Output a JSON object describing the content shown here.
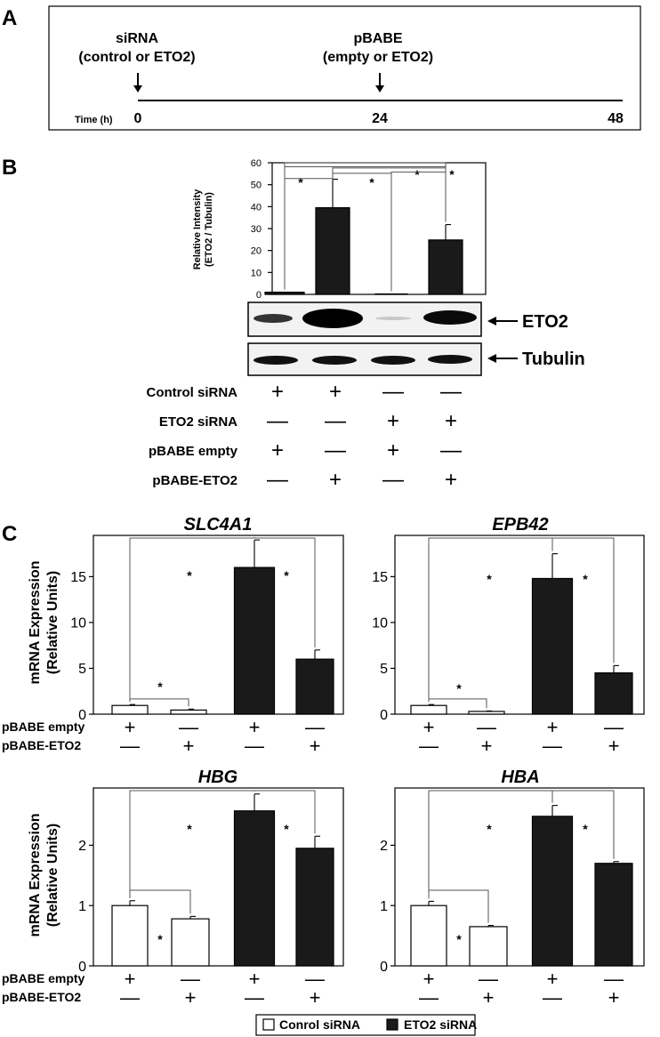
{
  "panel_labels": {
    "a": "A",
    "b": "B",
    "c": "C"
  },
  "timeline": {
    "siRNA_title": "siRNA",
    "siRNA_sub": "(control or ETO2)",
    "pbabe_title": "pBABE",
    "pbabe_sub": "(empty or ETO2)",
    "axis_label": "Time (h)",
    "ticks": [
      "0",
      "24",
      "48"
    ]
  },
  "panel_b": {
    "ylabel_1": "Relative Intensity",
    "ylabel_2": "(ETO2 / Tubulin)",
    "yticks": [
      "0",
      "10",
      "20",
      "30",
      "40",
      "50",
      "60"
    ],
    "blot_labels": [
      "ETO2",
      "Tubulin"
    ],
    "conditions": [
      {
        "label": "Control siRNA",
        "signs": [
          "+",
          "+",
          "—",
          "—"
        ]
      },
      {
        "label": "ETO2 siRNA",
        "signs": [
          "—",
          "—",
          "+",
          "+"
        ]
      },
      {
        "label": "pBABE empty",
        "signs": [
          "+",
          "—",
          "+",
          "—"
        ]
      },
      {
        "label": "pBABE-ETO2",
        "signs": [
          "—",
          "+",
          "—",
          "+"
        ]
      }
    ]
  },
  "panel_c": {
    "ylabel_1": "mRNA Expression",
    "ylabel_2": "(Relative Units)",
    "row_labels": [
      "pBABE empty",
      "pBABE-ETO2"
    ],
    "row_signs": [
      [
        "+",
        "—",
        "+",
        "—"
      ],
      [
        "—",
        "+",
        "—",
        "+"
      ]
    ],
    "legend": [
      "Conrol siRNA",
      "ETO2 siRNA"
    ]
  },
  "sig_marker": "*",
  "colors": {
    "control_bar": "#ffffff",
    "eto2_bar": "#1a1a1a",
    "axis": "#000000"
  },
  "chart_data": [
    {
      "type": "bar",
      "title": "",
      "ylim": [
        0,
        60
      ],
      "yticks": [
        0,
        10,
        20,
        30,
        40,
        50,
        60
      ],
      "values": [
        1,
        39.5,
        0.2,
        24.8
      ],
      "errors": [
        0,
        13,
        0,
        7
      ],
      "colors": [
        "#1a1a1a",
        "#1a1a1a",
        "#1a1a1a",
        "#1a1a1a"
      ]
    },
    {
      "type": "bar",
      "title": "SLC4A1",
      "ylim": [
        0,
        19.5
      ],
      "yticks": [
        0,
        5,
        10,
        15
      ],
      "values": [
        0.95,
        0.45,
        16,
        6
      ],
      "errors": [
        0.1,
        0.1,
        3,
        1
      ],
      "colors": [
        "#ffffff",
        "#ffffff",
        "#1a1a1a",
        "#1a1a1a"
      ]
    },
    {
      "type": "bar",
      "title": "EPB42",
      "ylim": [
        0,
        19.5
      ],
      "yticks": [
        0,
        5,
        10,
        15
      ],
      "values": [
        0.95,
        0.3,
        14.8,
        4.5
      ],
      "errors": [
        0.1,
        0.05,
        2.7,
        0.8
      ],
      "colors": [
        "#ffffff",
        "#ffffff",
        "#1a1a1a",
        "#1a1a1a"
      ]
    },
    {
      "type": "bar",
      "title": "HBG",
      "ylim": [
        0,
        2.95
      ],
      "yticks": [
        0,
        1,
        2
      ],
      "values": [
        1,
        0.78,
        2.57,
        1.95
      ],
      "errors": [
        0.08,
        0.04,
        0.28,
        0.2
      ],
      "colors": [
        "#ffffff",
        "#ffffff",
        "#1a1a1a",
        "#1a1a1a"
      ]
    },
    {
      "type": "bar",
      "title": "HBA",
      "ylim": [
        0,
        2.95
      ],
      "yticks": [
        0,
        1,
        2
      ],
      "values": [
        1,
        0.65,
        2.48,
        1.7
      ],
      "errors": [
        0.07,
        0.02,
        0.18,
        0.03
      ],
      "colors": [
        "#ffffff",
        "#ffffff",
        "#1a1a1a",
        "#1a1a1a"
      ]
    }
  ]
}
